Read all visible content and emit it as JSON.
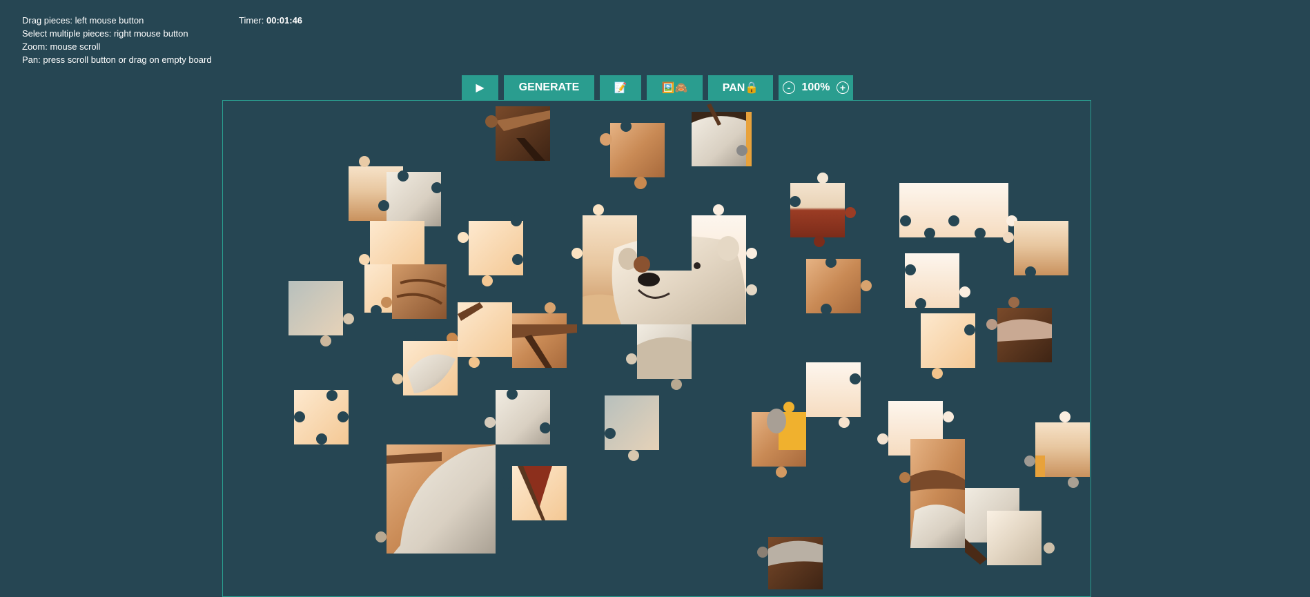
{
  "instructions": [
    "Drag pieces: left mouse button",
    "Select multiple pieces: right mouse button",
    "Zoom: mouse scroll",
    "Pan: press scroll button or drag on empty board"
  ],
  "timer": {
    "label": "Timer:",
    "value": "00:01:46"
  },
  "toolbar": {
    "play_label": "▶",
    "generate_label": "GENERATE",
    "notes_label": "📝",
    "preview_label": "🖼️🙈",
    "pan_label": "PAN🔒",
    "zoom_out_label": "-",
    "zoom_value": "100%",
    "zoom_in_label": "+"
  },
  "colors": {
    "background": "#264653",
    "accent": "#2a9d8f",
    "text": "#ffffff"
  }
}
